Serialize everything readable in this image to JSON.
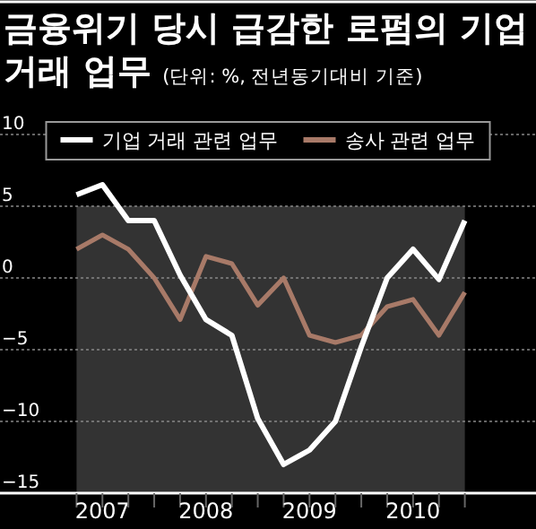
{
  "chart_data": {
    "type": "line",
    "title": "금융위기 당시 급감한 로펌의 기업 거래 업무",
    "subtitle": "(단위: %, 전년동기대비 기준)",
    "categories": [
      null,
      "2007",
      null,
      null,
      null,
      "2008",
      null,
      null,
      null,
      "2009",
      null,
      null,
      null,
      "2010",
      null,
      null
    ],
    "series": [
      {
        "name": "기업 거래 관련 업무",
        "color": "#ffffff",
        "values": [
          5.8,
          6.5,
          4.0,
          4.0,
          0.2,
          -2.9,
          -4.0,
          -9.8,
          -13.0,
          -12.0,
          -10.0,
          -4.8,
          0,
          2.0,
          -0.1,
          4.0
        ]
      },
      {
        "name": "송사 관련 업무",
        "color": "#a87a68",
        "values": [
          2.0,
          3.0,
          2.0,
          0,
          -2.9,
          1.5,
          1.0,
          -1.9,
          0,
          -4.0,
          -4.5,
          -4.0,
          -2.0,
          -1.5,
          -4.0,
          -1.0
        ]
      }
    ],
    "ylim": [
      -15,
      10
    ],
    "yticks": [
      -15,
      -10,
      -5,
      0,
      5,
      10
    ],
    "grid": "y",
    "legend": "top",
    "line_style": "solid",
    "marker": "none"
  }
}
